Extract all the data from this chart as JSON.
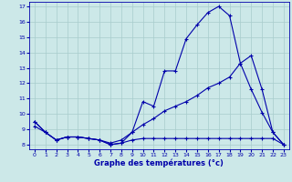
{
  "title": "Graphe des températures (°c)",
  "background_color": "#cce8e8",
  "grid_color": "#a8cccc",
  "line_color": "#0000aa",
  "xlim": [
    -0.5,
    23.5
  ],
  "ylim": [
    7.7,
    17.3
  ],
  "xticks": [
    0,
    1,
    2,
    3,
    4,
    5,
    6,
    7,
    8,
    9,
    10,
    11,
    12,
    13,
    14,
    15,
    16,
    17,
    18,
    19,
    20,
    21,
    22,
    23
  ],
  "yticks": [
    8,
    9,
    10,
    11,
    12,
    13,
    14,
    15,
    16,
    17
  ],
  "series1_x": [
    0,
    1,
    2,
    3,
    4,
    5,
    6,
    7,
    8,
    9,
    10,
    11,
    12,
    13,
    14,
    15,
    16,
    17,
    18,
    19,
    20,
    21,
    22,
    23
  ],
  "series1_y": [
    9.5,
    8.8,
    8.3,
    8.5,
    8.5,
    8.4,
    8.3,
    8.0,
    8.1,
    8.8,
    10.8,
    10.5,
    12.8,
    12.8,
    14.9,
    15.8,
    16.6,
    17.0,
    16.4,
    13.3,
    13.8,
    11.6,
    8.8,
    8.0
  ],
  "series2_x": [
    0,
    1,
    2,
    3,
    4,
    5,
    6,
    7,
    8,
    9,
    10,
    11,
    12,
    13,
    14,
    15,
    16,
    17,
    18,
    19,
    20,
    21,
    22,
    23
  ],
  "series2_y": [
    9.5,
    8.8,
    8.3,
    8.5,
    8.5,
    8.4,
    8.3,
    8.0,
    8.1,
    8.3,
    8.4,
    8.4,
    8.4,
    8.4,
    8.4,
    8.4,
    8.4,
    8.4,
    8.4,
    8.4,
    8.4,
    8.4,
    8.4,
    8.0
  ],
  "series3_x": [
    0,
    1,
    2,
    3,
    4,
    5,
    6,
    7,
    8,
    9,
    10,
    11,
    12,
    13,
    14,
    15,
    16,
    17,
    18,
    19,
    20,
    21,
    22,
    23
  ],
  "series3_y": [
    9.2,
    8.8,
    8.3,
    8.5,
    8.5,
    8.4,
    8.3,
    8.1,
    8.3,
    8.8,
    9.3,
    9.7,
    10.2,
    10.5,
    10.8,
    11.2,
    11.7,
    12.0,
    12.4,
    13.3,
    11.6,
    10.1,
    8.8,
    8.0
  ]
}
